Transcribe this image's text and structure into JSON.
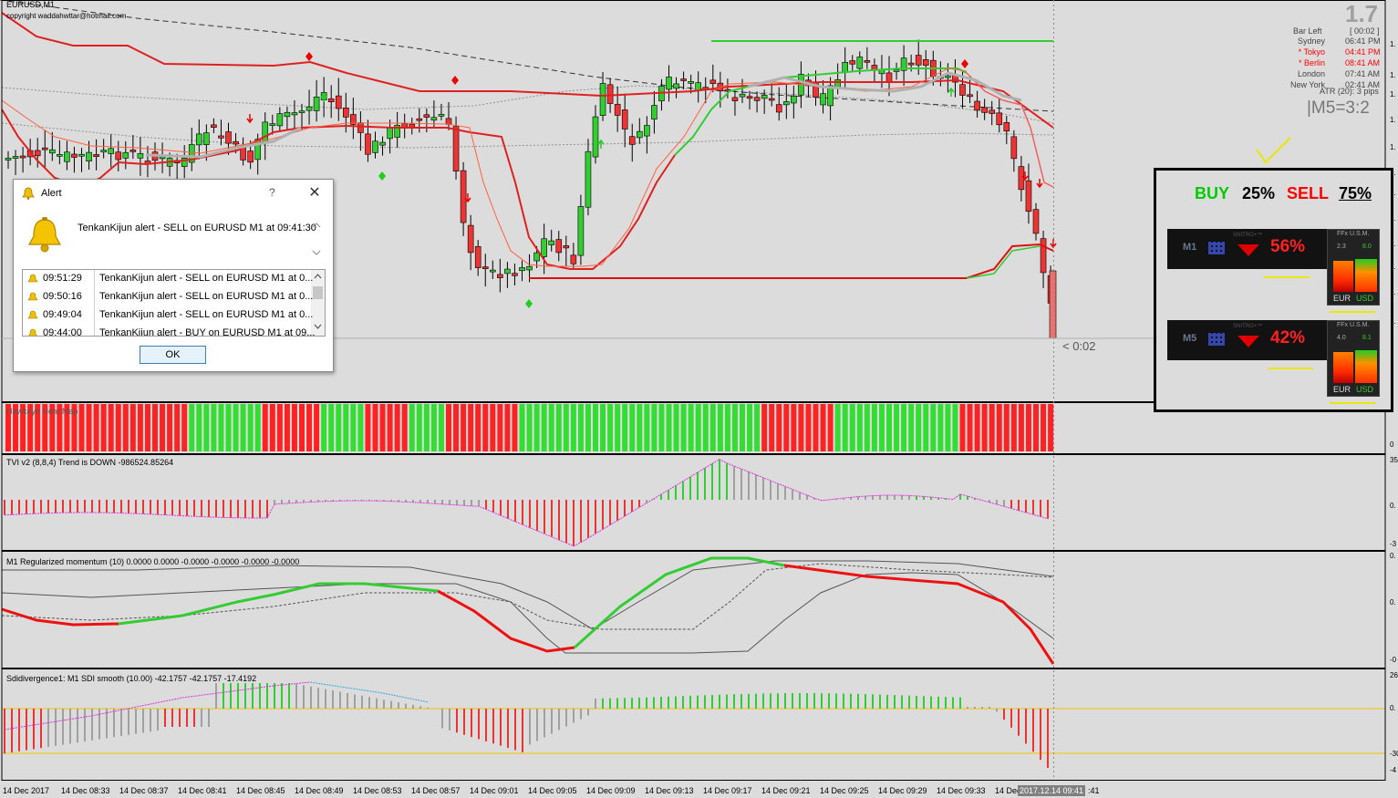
{
  "chart": {
    "header": "EURUSD,M1",
    "copyright": "copyright waddahwttar@hotmail.com",
    "countdown": "< 0:02",
    "big_price": "1.7",
    "right_scale": {
      "main": [
        "1.",
        "1.",
        "1.",
        "1.",
        "1.",
        "1.",
        "1.",
        "1.",
        "1.",
        "1.",
        "1.",
        "1."
      ],
      "hawkeye": [
        "0"
      ],
      "tvi": [
        "35",
        "0.",
        "-3"
      ],
      "momentum": [
        "0.",
        "0.",
        "-0"
      ],
      "sdi": [
        "26",
        "0.",
        "-30",
        "-4"
      ]
    },
    "colors": {
      "bull": "#33cc33",
      "bear": "#ee3333",
      "neutral": "#a0a0a0",
      "buy": "#00cc00",
      "sell": "#ff0000"
    }
  },
  "session_info": {
    "bar_left_label": "Bar Left",
    "bar_left_value": "[ 00:02 ]",
    "rows": [
      {
        "city": "Sydney",
        "time": "06:41 PM",
        "active": false
      },
      {
        "city": "* Tokyo",
        "time": "04:41 PM",
        "active": true
      },
      {
        "city": "* Berlin",
        "time": "08:41 AM",
        "active": true
      },
      {
        "city": "London",
        "time": "07:41 AM",
        "active": false
      },
      {
        "city": "New York",
        "time": "02:41 AM",
        "active": false
      }
    ],
    "atr": "ATR (20): 3 pips",
    "ratio": "|M5=3:2"
  },
  "signal_panel": {
    "buy_label": "BUY",
    "buy_pct": "25%",
    "sell_label": "SELL",
    "sell_pct": "75%",
    "meters": [
      {
        "tf": "M1",
        "brand": "SNITRO+™",
        "pct": "56%",
        "ffx": "FFx U.S.M.",
        "left_val": "2.3",
        "right_val": "8.0",
        "base": "EUR",
        "quote": "USD"
      },
      {
        "tf": "M5",
        "brand": "SNITRO+™",
        "pct": "42%",
        "ffx": "FFx U.S.M.",
        "left_val": "4.0",
        "right_val": "8.1",
        "base": "EUR",
        "quote": "USD"
      }
    ]
  },
  "indicators": {
    "hawkeye": "Hawkeye Heat Map",
    "tvi": "TVI v2 (8,8,4) Trend is DOWN -986524.85264",
    "momentum": "M1 Regularized momentum (10) 0.0000 0.0000 -0.0000 -0.0000 -0.0000 -0.0000",
    "sdi": "Sdidivergence1:  M1   SDI smooth (10.00) -42.1757 -42.1757 -17.4192"
  },
  "time_axis": [
    "14 Dec 2017",
    "14 Dec 08:33",
    "14 Dec 08:37",
    "14 Dec 08:41",
    "14 Dec 08:45",
    "14 Dec 08:49",
    "14 Dec 08:53",
    "14 Dec 08:57",
    "14 Dec 09:01",
    "14 Dec 09:05",
    "14 Dec 09:09",
    "14 Dec 09:13",
    "14 Dec 09:17",
    "14 Dec 09:21",
    "14 Dec 09:25",
    "14 Dec 09:29",
    "14 Dec 09:33",
    "14 Dec"
  ],
  "time_cursor": "2017.12.14 09:41",
  "time_tail": ":41",
  "alert": {
    "title": "Alert",
    "help": "?",
    "close": "✕",
    "message": "TenkanKijun alert - SELL on EURUSD M1 at 09:41:30",
    "rows": [
      {
        "time": "09:51:29",
        "text": "TenkanKijun alert - SELL on EURUSD M1 at 0..."
      },
      {
        "time": "09:50:16",
        "text": "TenkanKijun alert - SELL on EURUSD M1 at 0..."
      },
      {
        "time": "09:49:04",
        "text": "TenkanKijun alert - SELL on EURUSD M1 at 0..."
      },
      {
        "time": "09:44:00",
        "text": "TenkanKijun alert - BUY on EURUSD M1 at 09..."
      }
    ],
    "ok": "OK"
  }
}
